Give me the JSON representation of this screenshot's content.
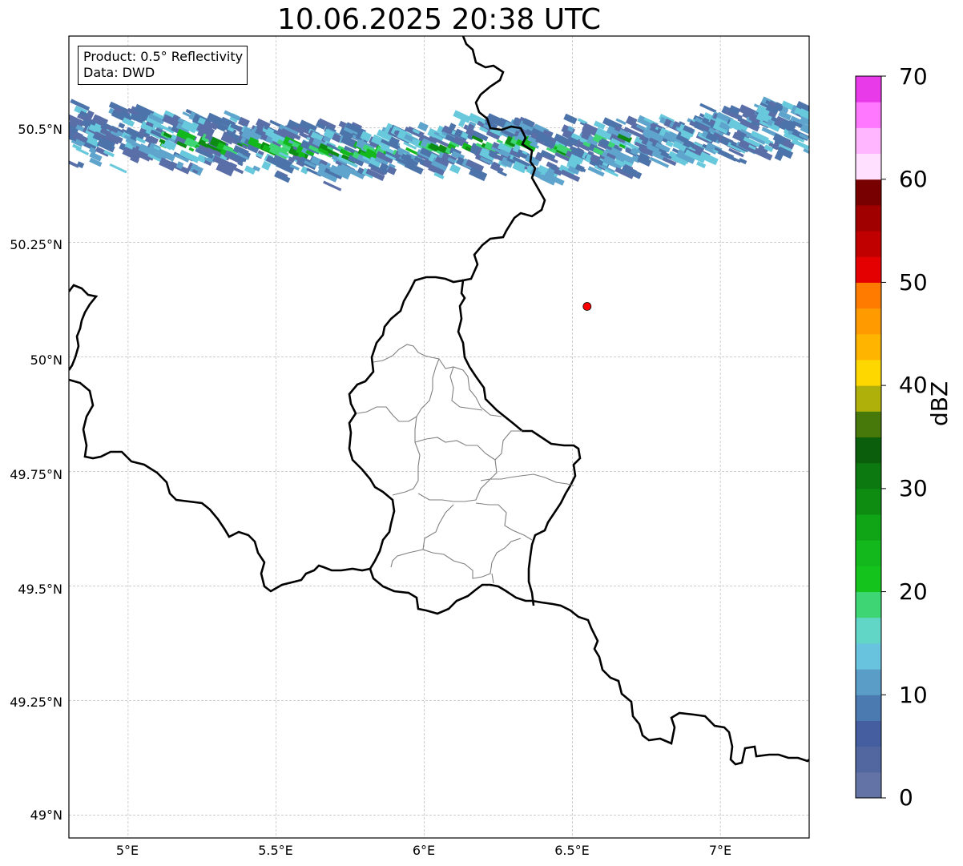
{
  "title": "10.06.2025 20:38 UTC",
  "info": {
    "product": "Product: 0.5° Reflectivity",
    "data_source": "Data: DWD"
  },
  "lat_labels": [
    "50.5°N",
    "50.25°N",
    "50°N",
    "49.75°N",
    "49.5°N",
    "49.25°N",
    "49°N"
  ],
  "lon_labels": [
    "5°E",
    "5.5°E",
    "6°E",
    "6.5°E",
    "7°E"
  ],
  "marker": {
    "name": "radar-site",
    "lon": 6.55,
    "lat": 50.11,
    "color": "#ff0000"
  },
  "colorbar": {
    "label": "dBZ",
    "ticks": [
      "0",
      "10",
      "20",
      "30",
      "40",
      "50",
      "60",
      "70"
    ],
    "colors": [
      "#6473a6",
      "#5267a0",
      "#445e9f",
      "#4a7ab0",
      "#5a9ec8",
      "#68c3de",
      "#62d6c6",
      "#3ed674",
      "#14c41d",
      "#12b81c",
      "#10a516",
      "#0e8c12",
      "#0c7810",
      "#0a5e0c",
      "#46780a",
      "#b0b00a",
      "#ffd700",
      "#ffb400",
      "#ff9b00",
      "#ff7b00",
      "#e40000",
      "#c00000",
      "#a00000",
      "#780000",
      "#ffe0ff",
      "#ffb6ff",
      "#ff78ff",
      "#e83ae8"
    ]
  },
  "map": {
    "extent": {
      "lon_min": 4.8,
      "lon_max": 7.3,
      "lat_min": 48.95,
      "lat_max": 50.7
    },
    "echo_band_colors": [
      "#5a6ea8",
      "#4c74aa",
      "#5ea4cc",
      "#68c8dc",
      "#3ed674",
      "#12b81c",
      "#0c8c12"
    ],
    "border_color": "#000000",
    "district_color": "#808080",
    "grid_color": "#b0b0b0"
  }
}
